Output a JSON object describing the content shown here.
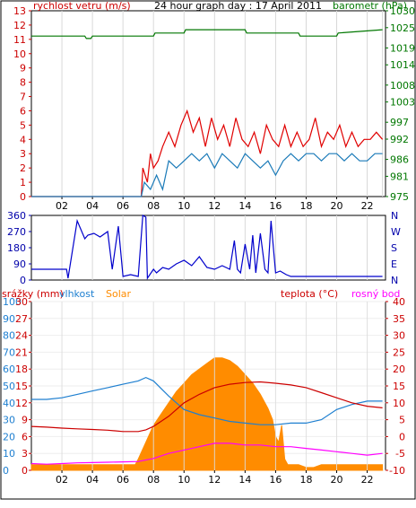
{
  "panels": {
    "wind": {
      "title_left": "rychlost vetru (m/s)",
      "title_center": "24 hour graph day : 17 April 2011",
      "title_right": "barometr (hPa)"
    },
    "direction": {
      "right_labels": [
        "N",
        "W",
        "S",
        "E",
        "N"
      ]
    },
    "weather": {
      "label_rain": "srážky (mm)",
      "label_humidity": "vlhkost",
      "label_solar": "Solar",
      "label_temp": "teplota (°C)",
      "label_dew": "rosný bod"
    }
  },
  "colors": {
    "wind_gust": "#e00000",
    "wind_avg": "#1a7ab8",
    "barometer": "#007700",
    "direction": "#0000cc",
    "humidity": "#1e7fd0",
    "solar": "#ff8c00",
    "temperature": "#cc0000",
    "dewpoint": "#ff00ff",
    "left_axis": "#cc0000",
    "right_axis": "#007700",
    "dir_axis": "#0000aa",
    "humidity_axis": "#1e7fd0",
    "rain_axis": "#cc0000"
  },
  "chart_data": [
    {
      "type": "line",
      "title": "24 hour graph day : 17 April 2011",
      "x_ticks": [
        "02",
        "04",
        "06",
        "08",
        "10",
        "12",
        "14",
        "16",
        "18",
        "20",
        "22"
      ],
      "y_left_label": "rychlost vetru (m/s)",
      "y_left_ticks": [
        0,
        1,
        2,
        3,
        4,
        5,
        6,
        7,
        8,
        9,
        10,
        11,
        12,
        13
      ],
      "ylim_left": [
        0,
        13
      ],
      "y_right_label": "barometr (hPa)",
      "y_right_ticks": [
        975,
        981,
        986,
        992,
        997,
        1003,
        1008,
        1014,
        1019,
        1025,
        1030
      ],
      "ylim_right": [
        975,
        1030
      ],
      "series": [
        {
          "name": "wind_gust",
          "axis": "left",
          "x": [
            0,
            7.2,
            7.3,
            7.6,
            7.8,
            8.0,
            8.3,
            8.6,
            9.0,
            9.4,
            9.8,
            10.2,
            10.6,
            11.0,
            11.4,
            11.8,
            12.2,
            12.6,
            13.0,
            13.4,
            13.8,
            14.2,
            14.6,
            15.0,
            15.4,
            15.8,
            16.2,
            16.6,
            17.0,
            17.4,
            17.8,
            18.2,
            18.6,
            19.0,
            19.4,
            19.8,
            20.2,
            20.6,
            21.0,
            21.4,
            21.8,
            22.2,
            22.6,
            23.0
          ],
          "y": [
            0,
            0,
            2,
            1,
            3,
            2,
            2.5,
            3.5,
            4.5,
            3.5,
            5.0,
            6.0,
            4.5,
            5.5,
            3.5,
            5.5,
            4.0,
            5.0,
            3.5,
            5.5,
            4.0,
            3.5,
            4.5,
            3.0,
            5.0,
            4.0,
            3.5,
            5.0,
            3.5,
            4.5,
            3.5,
            4.0,
            5.5,
            3.5,
            4.5,
            4.0,
            5.0,
            3.5,
            4.5,
            3.5,
            4.0,
            4.0,
            4.5,
            4.0
          ]
        },
        {
          "name": "wind_avg",
          "axis": "left",
          "x": [
            0,
            7.2,
            7.4,
            7.8,
            8.2,
            8.6,
            9.0,
            9.5,
            10.0,
            10.5,
            11.0,
            11.5,
            12.0,
            12.5,
            13.0,
            13.5,
            14.0,
            14.5,
            15.0,
            15.5,
            16.0,
            16.5,
            17.0,
            17.5,
            18.0,
            18.5,
            19.0,
            19.5,
            20.0,
            20.5,
            21.0,
            21.5,
            22.0,
            22.5,
            23.0
          ],
          "y": [
            0,
            0,
            1.0,
            0.5,
            1.5,
            0.5,
            2.5,
            2.0,
            2.5,
            3.0,
            2.5,
            3.0,
            2.0,
            3.0,
            2.5,
            2.0,
            3.0,
            2.5,
            2.0,
            2.5,
            1.5,
            2.5,
            3.0,
            2.5,
            3.0,
            3.0,
            2.5,
            3.0,
            3.0,
            2.5,
            3.0,
            2.5,
            2.5,
            3.0,
            3.0
          ]
        },
        {
          "name": "barometer",
          "axis": "right",
          "x": [
            0,
            3.5,
            3.6,
            3.9,
            4.0,
            8.0,
            8.1,
            10.0,
            10.1,
            14.0,
            14.1,
            17.5,
            17.6,
            20.0,
            20.1,
            23.0
          ],
          "y": [
            1022.5,
            1022.5,
            1021.8,
            1021.8,
            1022.5,
            1022.5,
            1023.4,
            1023.4,
            1024.4,
            1024.4,
            1023.4,
            1023.4,
            1022.5,
            1022.5,
            1023.4,
            1024.4
          ]
        }
      ]
    },
    {
      "type": "line",
      "x_ticks": [
        "02",
        "04",
        "06",
        "08",
        "10",
        "12",
        "14",
        "16",
        "18",
        "20",
        "22"
      ],
      "y_ticks": [
        0,
        90,
        180,
        270,
        360
      ],
      "ylim": [
        0,
        360
      ],
      "right_labels": [
        "N",
        "W",
        "S",
        "E",
        "N"
      ],
      "series": [
        {
          "name": "wind_direction",
          "x": [
            0,
            2.3,
            2.4,
            3.0,
            3.5,
            3.7,
            4.1,
            4.5,
            5.0,
            5.3,
            5.7,
            6.0,
            6.5,
            7.0,
            7.3,
            7.5,
            7.6,
            8.0,
            8.2,
            8.6,
            9.0,
            9.5,
            10.0,
            10.5,
            11.0,
            11.5,
            12.0,
            12.5,
            13.0,
            13.3,
            13.5,
            13.7,
            14.0,
            14.3,
            14.5,
            14.7,
            15.0,
            15.3,
            15.5,
            15.7,
            16.0,
            16.3,
            16.5,
            16.7,
            17.0,
            18.0,
            19.0,
            20.0,
            21.0,
            22.0,
            23.0
          ],
          "y": [
            60,
            60,
            10,
            330,
            230,
            250,
            260,
            240,
            270,
            60,
            300,
            20,
            30,
            20,
            360,
            350,
            10,
            60,
            40,
            70,
            60,
            90,
            110,
            80,
            130,
            70,
            60,
            80,
            60,
            220,
            60,
            40,
            200,
            60,
            250,
            40,
            260,
            60,
            40,
            330,
            40,
            50,
            40,
            30,
            20,
            20,
            20,
            20,
            20,
            20,
            20
          ]
        }
      ]
    },
    {
      "type": "line",
      "x_ticks": [
        "02",
        "04",
        "06",
        "08",
        "10",
        "12",
        "14",
        "16",
        "18",
        "20",
        "22"
      ],
      "y_left_ticks_humidity": [
        0,
        10,
        20,
        30,
        40,
        50,
        60,
        70,
        80,
        90,
        100
      ],
      "y_left_ticks_rain": [
        0,
        3,
        6,
        9,
        12,
        15,
        18,
        21,
        24,
        27,
        30
      ],
      "y_right_ticks": [
        -10,
        -5,
        0,
        5,
        10,
        15,
        20,
        25,
        30,
        35,
        40
      ],
      "ylim_humidity": [
        0,
        100
      ],
      "ylim_rain": [
        0,
        30
      ],
      "ylim_temperature": [
        -10,
        40
      ],
      "series": [
        {
          "name": "Solar",
          "axis": "rain",
          "x": [
            0,
            6.8,
            7.0,
            7.5,
            8.0,
            8.5,
            9.0,
            9.5,
            10.0,
            10.5,
            11.0,
            11.5,
            12.0,
            12.5,
            13.0,
            13.5,
            14.0,
            14.5,
            15.0,
            15.5,
            15.8,
            16.0,
            16.2,
            16.4,
            16.6,
            16.8,
            17.0,
            17.5,
            18.0,
            18.5,
            19.0,
            23.0
          ],
          "y": [
            1,
            1,
            2,
            5,
            8,
            10,
            12,
            14,
            15.5,
            17,
            18,
            19,
            20,
            20,
            19.5,
            18.5,
            17,
            15.5,
            13.5,
            11,
            9,
            6,
            5,
            8,
            2,
            1,
            1,
            1,
            0.5,
            0.5,
            1,
            1
          ]
        },
        {
          "name": "vlhkost",
          "axis": "humidity",
          "x": [
            0,
            1,
            2,
            3,
            4,
            5,
            6,
            7,
            7.5,
            8.0,
            9.0,
            10.0,
            11.0,
            12.0,
            13.0,
            14.0,
            15.0,
            16.0,
            17.0,
            18.0,
            19.0,
            20.0,
            21.0,
            22.0,
            23.0
          ],
          "y": [
            42,
            42,
            43,
            45,
            47,
            49,
            51,
            53,
            55,
            53,
            44,
            36,
            33,
            31,
            29,
            28,
            27,
            27,
            28,
            28,
            30,
            36,
            39,
            41,
            41
          ]
        },
        {
          "name": "teplota",
          "axis": "temperature",
          "x": [
            0,
            1,
            2,
            3,
            4,
            5,
            6,
            7,
            7.5,
            8.0,
            9.0,
            10.0,
            11.0,
            12.0,
            13.0,
            14.0,
            15.0,
            16.0,
            17.0,
            18.0,
            19.0,
            20.0,
            21.0,
            22.0,
            23.0
          ],
          "y": [
            3,
            2.8,
            2.5,
            2.3,
            2.1,
            1.9,
            1.5,
            1.5,
            2.0,
            3.0,
            6.0,
            10.0,
            12.5,
            14.5,
            15.5,
            16.0,
            16.2,
            15.8,
            15.3,
            14.5,
            13.0,
            11.5,
            10.0,
            9.0,
            8.5
          ]
        },
        {
          "name": "rosný bod",
          "axis": "temperature",
          "x": [
            0,
            1,
            2,
            3,
            4,
            5,
            6,
            7,
            8,
            9,
            10,
            11,
            12,
            13,
            14,
            15,
            16,
            17,
            18,
            19,
            20,
            21,
            22,
            23
          ],
          "y": [
            -8,
            -8.2,
            -8.0,
            -7.8,
            -7.7,
            -7.6,
            -7.5,
            -7.4,
            -6.5,
            -5.0,
            -4.0,
            -3.0,
            -2.0,
            -2.0,
            -2.5,
            -2.5,
            -3.0,
            -3.0,
            -3.5,
            -4.0,
            -4.5,
            -5.0,
            -5.5,
            -5.0
          ]
        }
      ]
    }
  ]
}
